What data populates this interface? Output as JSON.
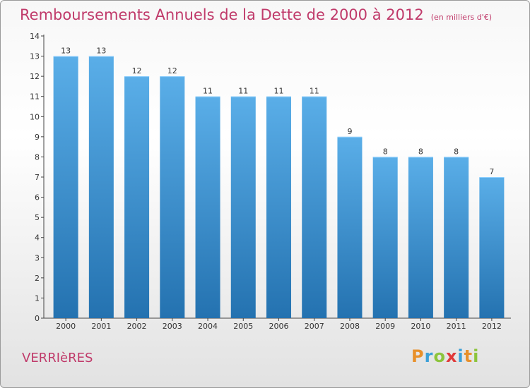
{
  "chart_data": {
    "type": "bar",
    "title": "Remboursements Annuels de la Dette de 2000 à 2012",
    "subtitle": "(en milliers d'€)",
    "categories": [
      "2000",
      "2001",
      "2002",
      "2003",
      "2004",
      "2005",
      "2006",
      "2007",
      "2008",
      "2009",
      "2010",
      "2011",
      "2012"
    ],
    "values": [
      13,
      13,
      12,
      12,
      11,
      11,
      11,
      11,
      9,
      8,
      8,
      8,
      7
    ],
    "data_labels": [
      "13",
      "13",
      "12",
      "12",
      "11",
      "11",
      "11",
      "11",
      "9",
      "8",
      "8",
      "8",
      "7"
    ],
    "y_ticks": [
      "0",
      "1",
      "2",
      "3",
      "4",
      "5",
      "6",
      "7",
      "8",
      "9",
      "10",
      "11",
      "12",
      "13",
      "14"
    ],
    "ylim": [
      0,
      14
    ],
    "xlabel": "",
    "ylabel": "",
    "grid": false,
    "bar_color_top": "#5aaee8",
    "bar_color_bottom": "#2472b0"
  },
  "footer": {
    "commune": "VERRIèRES",
    "brand": [
      "P",
      "r",
      "o",
      "x",
      "i",
      "t",
      "i"
    ],
    "brand_colors": [
      "#e8902a",
      "#3aa0d8",
      "#8cc43c",
      "#e03a3a",
      "#3aa0d8",
      "#e8902a",
      "#8cc43c"
    ]
  }
}
